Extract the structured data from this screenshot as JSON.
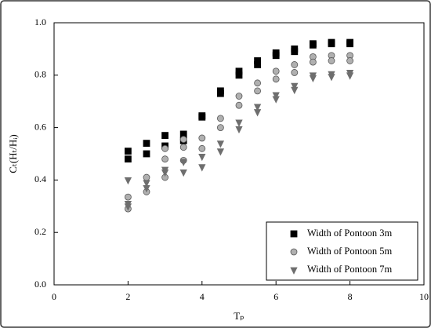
{
  "chart_data": {
    "type": "scatter",
    "xlabel": "Tₚ",
    "ylabel": "Cₜ(Hₜ/Hᵢ)",
    "xlim": [
      0,
      10
    ],
    "xticks": [
      0,
      2,
      4,
      6,
      8,
      10
    ],
    "ylim": [
      0,
      1
    ],
    "yticks": [
      {
        "value": 0,
        "label": "0.0"
      },
      0.2,
      0.4,
      0.6,
      0.8,
      {
        "value": 1,
        "label": "1.0"
      }
    ],
    "legend": "lower right",
    "series": [
      {
        "name": "Width of Pontoon 3m",
        "color": "#000000",
        "marker": "square",
        "x": [
          2,
          2,
          2.5,
          2.5,
          3,
          3,
          3.5,
          3.5,
          4,
          4,
          4.5,
          4.5,
          5,
          5,
          5.5,
          5.5,
          6,
          6,
          6.5,
          6.5,
          7,
          7,
          7.5,
          7.5,
          8,
          8
        ],
        "values": [
          0.51,
          0.48,
          0.54,
          0.5,
          0.57,
          0.53,
          0.575,
          0.55,
          0.645,
          0.64,
          0.74,
          0.73,
          0.815,
          0.8,
          0.855,
          0.84,
          0.885,
          0.875,
          0.9,
          0.89,
          0.92,
          0.915,
          0.925,
          0.92,
          0.925,
          0.92
        ]
      },
      {
        "name": "Width of Pontoon 5m",
        "color": "#b0b0b0",
        "marker": "circle",
        "x": [
          2,
          2,
          2.5,
          2.5,
          3,
          3,
          3,
          3.5,
          3.5,
          3.5,
          4,
          4,
          4.5,
          4.5,
          5,
          5,
          5.5,
          5.5,
          6,
          6,
          6.5,
          6.5,
          7,
          7,
          7.5,
          7.5,
          8,
          8
        ],
        "values": [
          0.335,
          0.29,
          0.41,
          0.355,
          0.52,
          0.48,
          0.41,
          0.555,
          0.525,
          0.475,
          0.56,
          0.52,
          0.635,
          0.6,
          0.72,
          0.685,
          0.77,
          0.74,
          0.815,
          0.785,
          0.84,
          0.81,
          0.87,
          0.85,
          0.875,
          0.855,
          0.875,
          0.855
        ]
      },
      {
        "name": "Width of Pontoon 7m",
        "color": "#6e6e6e",
        "marker": "triangle",
        "x": [
          2,
          2,
          2,
          2.5,
          2.5,
          3,
          3,
          3.5,
          3.5,
          4,
          4,
          4.5,
          4.5,
          5,
          5,
          5.5,
          5.5,
          6,
          6,
          6.5,
          6.5,
          7,
          7,
          7.5,
          7.5,
          8,
          8
        ],
        "values": [
          0.4,
          0.31,
          0.3,
          0.39,
          0.37,
          0.44,
          0.43,
          0.47,
          0.43,
          0.49,
          0.45,
          0.54,
          0.51,
          0.62,
          0.595,
          0.68,
          0.66,
          0.725,
          0.71,
          0.76,
          0.745,
          0.8,
          0.79,
          0.805,
          0.795,
          0.81,
          0.8
        ]
      }
    ]
  }
}
